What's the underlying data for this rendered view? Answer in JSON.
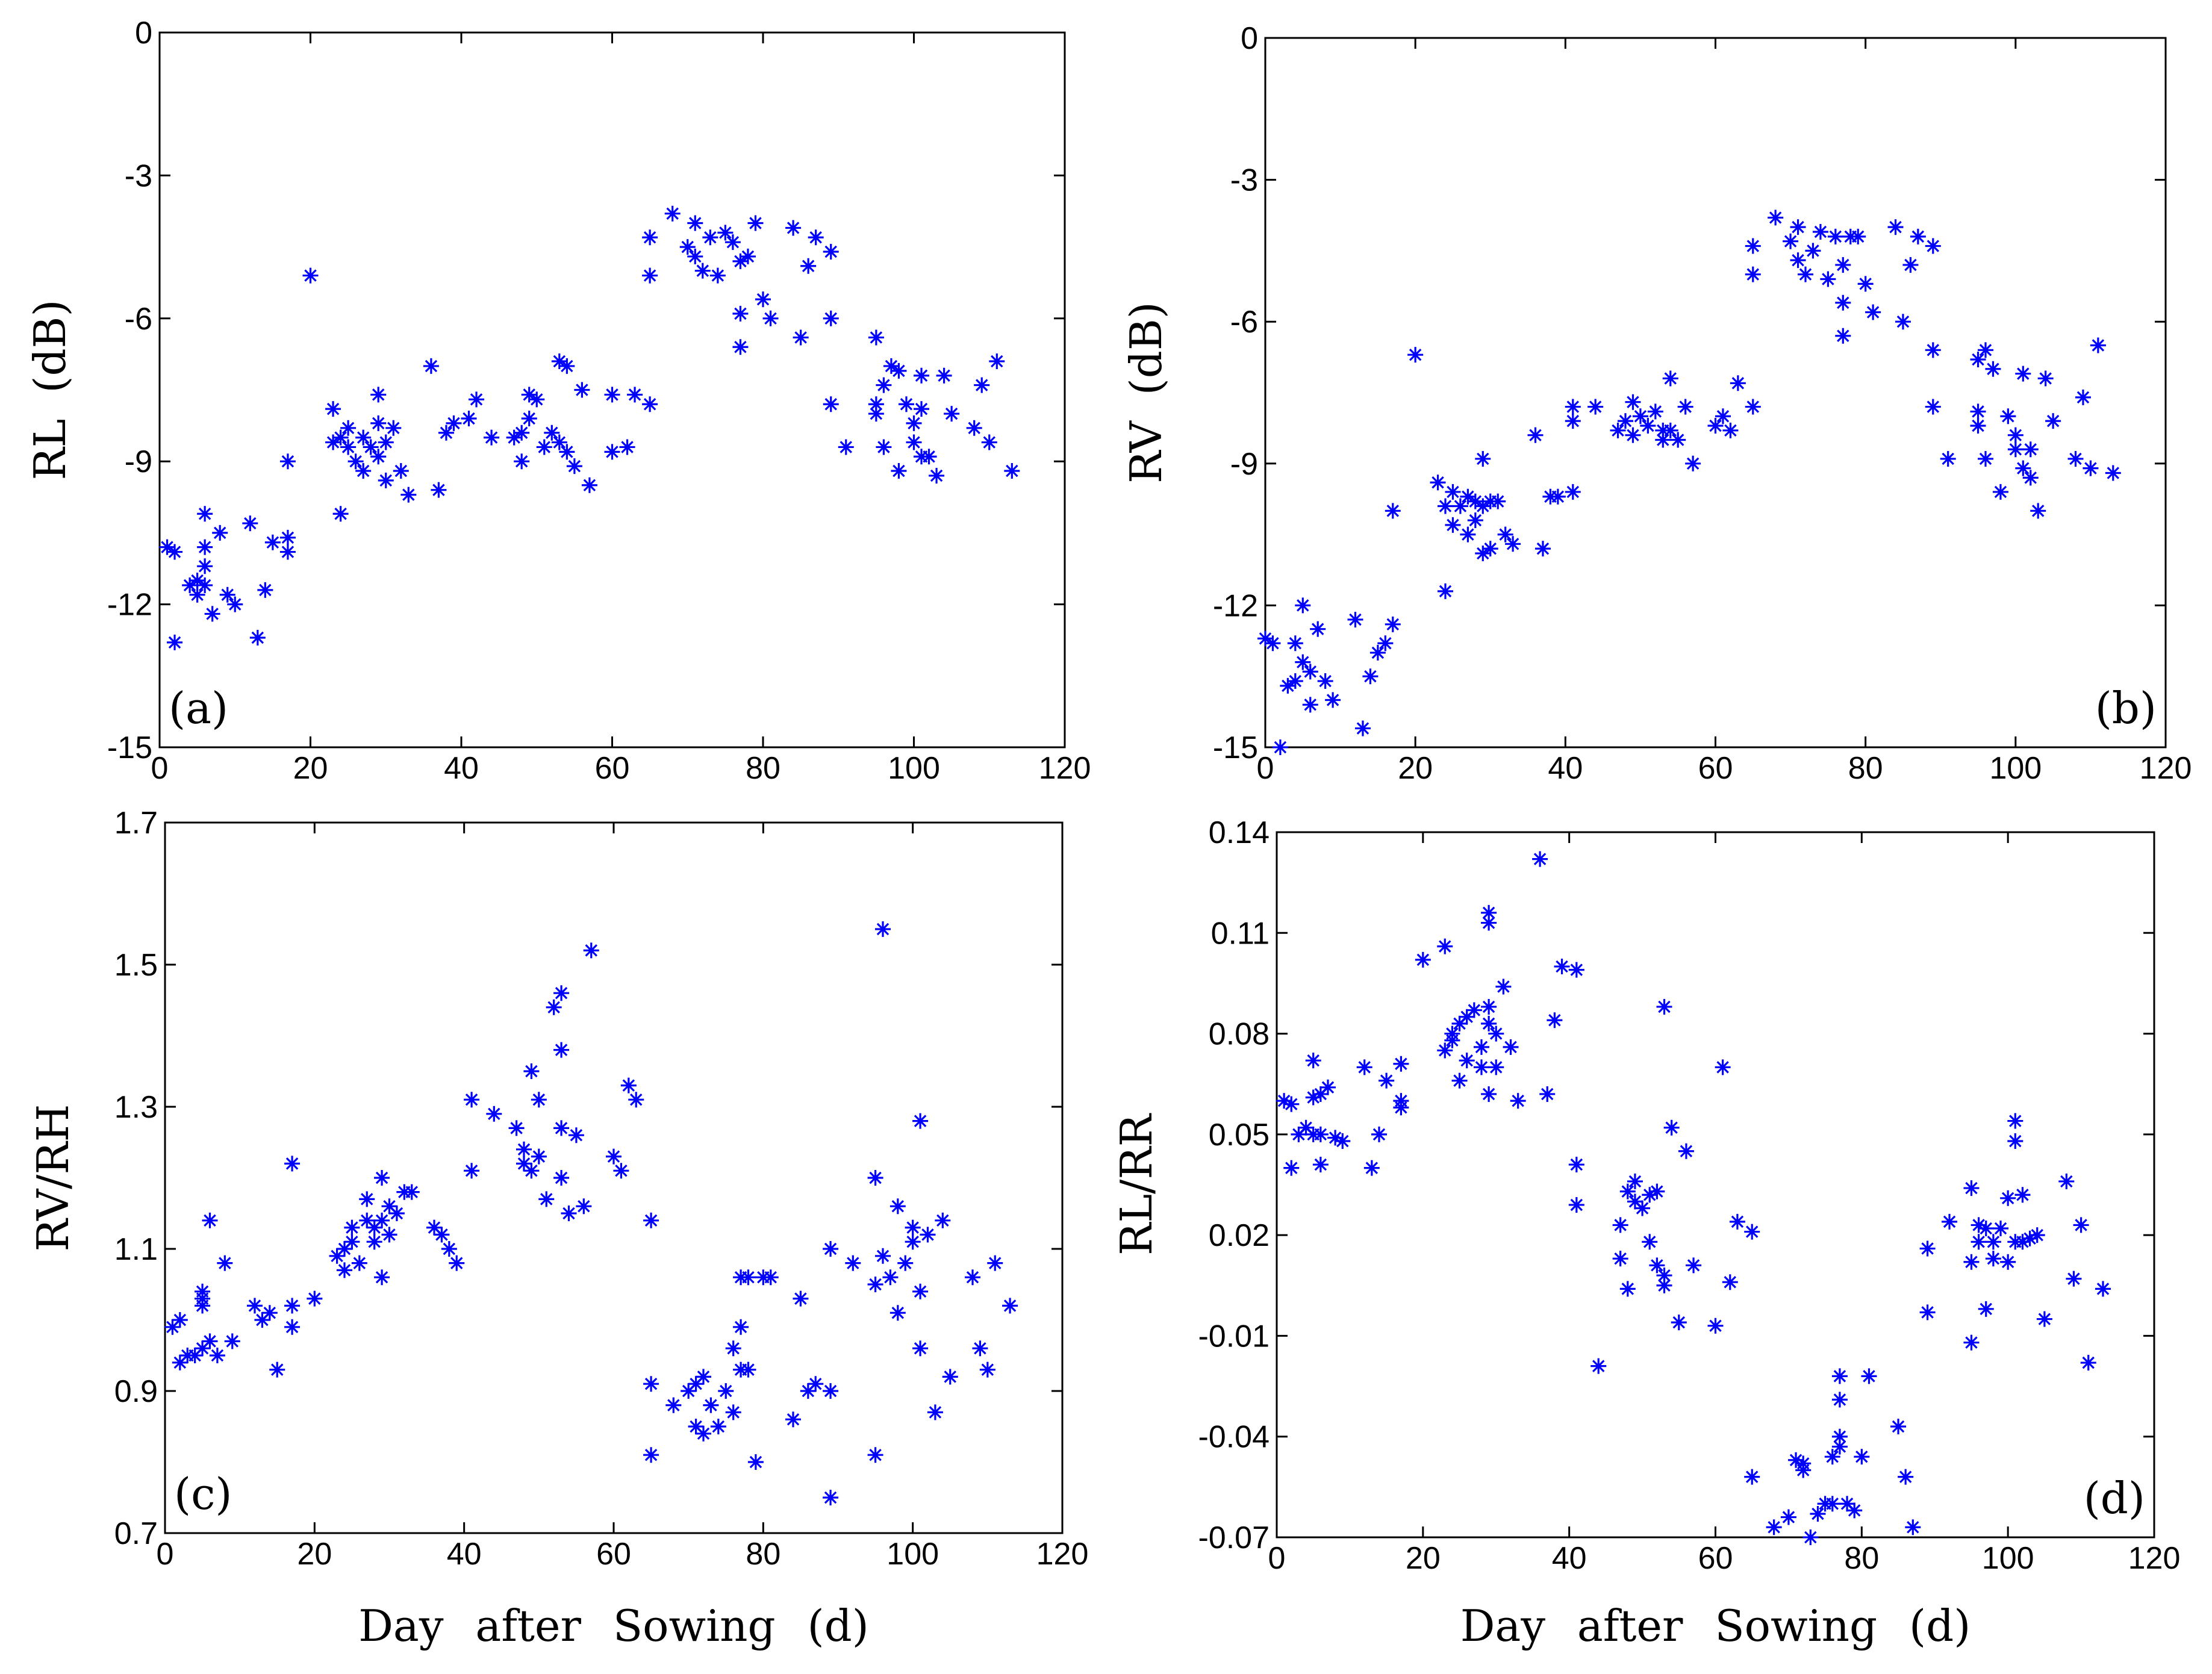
{
  "chart_data": [
    {
      "type": "scatter",
      "label": "(a)",
      "label_corner": "lower left",
      "ylabel": "RL (dB)",
      "color": "#0000ff",
      "xlim": [
        0,
        120
      ],
      "xticks": [
        0,
        20,
        40,
        60,
        80,
        100,
        120
      ],
      "ylim": [
        -15,
        0
      ],
      "yticks": [
        -15,
        -12,
        -9,
        -6,
        -3,
        0
      ],
      "x": [
        1,
        2,
        2,
        4,
        5,
        5,
        6,
        6,
        6,
        6,
        7,
        8,
        9,
        10,
        12,
        13,
        14,
        15,
        17,
        17,
        17,
        20,
        23,
        23,
        24,
        24,
        25,
        25,
        26,
        27,
        27,
        28,
        29,
        29,
        29,
        30,
        30,
        31,
        32,
        33,
        36,
        37,
        38,
        39,
        41,
        42,
        44,
        47,
        48,
        48,
        49,
        49,
        50,
        51,
        52,
        53,
        53,
        54,
        54,
        55,
        56,
        57,
        60,
        60,
        62,
        63,
        65,
        65,
        65,
        68,
        70,
        71,
        71,
        72,
        73,
        74,
        75,
        76,
        77,
        77,
        77,
        78,
        79,
        80,
        81,
        84,
        85,
        86,
        87,
        89,
        89,
        89,
        91,
        95,
        95,
        95,
        96,
        96,
        97,
        98,
        98,
        99,
        100,
        100,
        101,
        101,
        101,
        102,
        103,
        104,
        105,
        108,
        109,
        110,
        111,
        113
      ],
      "y": [
        -10.8,
        -12.8,
        -10.9,
        -11.6,
        -11.5,
        -11.8,
        -11.6,
        -10.8,
        -11.2,
        -10.1,
        -12.2,
        -10.5,
        -11.8,
        -12.0,
        -10.3,
        -12.7,
        -11.7,
        -10.7,
        -10.9,
        -10.6,
        -9.0,
        -5.1,
        -8.6,
        -7.9,
        -8.5,
        -10.1,
        -8.3,
        -8.7,
        -9.0,
        -8.5,
        -9.2,
        -8.7,
        -8.9,
        -7.6,
        -8.2,
        -9.4,
        -8.6,
        -8.3,
        -9.2,
        -9.7,
        -7.0,
        -9.6,
        -8.4,
        -8.2,
        -8.1,
        -7.7,
        -8.5,
        -8.5,
        -8.4,
        -9.0,
        -7.6,
        -8.1,
        -7.7,
        -8.7,
        -8.4,
        -8.6,
        -6.9,
        -8.8,
        -7.0,
        -9.1,
        -7.5,
        -9.5,
        -8.8,
        -7.6,
        -8.7,
        -7.6,
        -7.8,
        -4.3,
        -5.1,
        -3.8,
        -4.5,
        -4.0,
        -4.7,
        -5.0,
        -4.3,
        -5.1,
        -4.2,
        -4.4,
        -4.8,
        -5.9,
        -6.6,
        -4.7,
        -4.0,
        -5.6,
        -6.0,
        -4.1,
        -6.4,
        -4.9,
        -4.3,
        -4.6,
        -6.0,
        -7.8,
        -8.7,
        -6.4,
        -7.8,
        -8.0,
        -7.4,
        -8.7,
        -7.0,
        -7.1,
        -9.2,
        -7.8,
        -8.2,
        -8.6,
        -7.2,
        -8.9,
        -7.9,
        -8.9,
        -9.3,
        -7.2,
        -8.0,
        -8.3,
        -7.4,
        -8.6,
        -6.9,
        -9.2
      ]
    },
    {
      "type": "scatter",
      "label": "(b)",
      "label_corner": "lower right",
      "ylabel": "RV (dB)",
      "color": "#0000ff",
      "xlim": [
        0,
        120
      ],
      "xticks": [
        0,
        20,
        40,
        60,
        80,
        100,
        120
      ],
      "ylim": [
        -15,
        0
      ],
      "yticks": [
        -15,
        -12,
        -9,
        -6,
        -3,
        0
      ],
      "x": [
        0,
        1,
        2,
        3,
        4,
        4,
        5,
        5,
        6,
        6,
        7,
        8,
        9,
        12,
        13,
        14,
        15,
        16,
        17,
        17,
        20,
        23,
        24,
        24,
        25,
        25,
        26,
        27,
        27,
        28,
        28,
        29,
        29,
        29,
        30,
        30,
        31,
        32,
        33,
        36,
        37,
        38,
        39,
        41,
        41,
        41,
        44,
        47,
        48,
        49,
        49,
        50,
        51,
        52,
        53,
        53,
        54,
        54,
        55,
        56,
        57,
        60,
        61,
        62,
        63,
        65,
        65,
        65,
        68,
        70,
        71,
        71,
        72,
        73,
        74,
        75,
        76,
        77,
        77,
        77,
        78,
        79,
        80,
        81,
        84,
        85,
        86,
        87,
        89,
        89,
        89,
        91,
        95,
        95,
        95,
        96,
        96,
        97,
        98,
        99,
        100,
        100,
        101,
        101,
        102,
        102,
        103,
        104,
        105,
        108,
        109,
        110,
        111,
        113
      ],
      "y": [
        -12.7,
        -12.8,
        -15.0,
        -13.7,
        -13.6,
        -12.8,
        -13.2,
        -12.0,
        -13.4,
        -14.1,
        -12.5,
        -13.6,
        -14.0,
        -12.3,
        -14.6,
        -13.5,
        -13.0,
        -12.8,
        -12.4,
        -10.0,
        -6.7,
        -9.4,
        -9.9,
        -11.7,
        -9.6,
        -10.3,
        -9.9,
        -10.5,
        -9.7,
        -9.8,
        -10.2,
        -8.9,
        -9.9,
        -10.9,
        -10.8,
        -9.8,
        -9.8,
        -10.5,
        -10.7,
        -8.4,
        -10.8,
        -9.7,
        -9.7,
        -9.6,
        -7.8,
        -8.1,
        -7.8,
        -8.3,
        -8.1,
        -7.7,
        -8.4,
        -8.0,
        -8.2,
        -7.9,
        -8.3,
        -8.5,
        -7.2,
        -8.3,
        -8.5,
        -7.8,
        -9.0,
        -8.2,
        -8.0,
        -8.3,
        -7.3,
        -7.8,
        -4.4,
        -5.0,
        -3.8,
        -4.3,
        -4.0,
        -4.7,
        -5.0,
        -4.5,
        -4.1,
        -5.1,
        -4.2,
        -4.8,
        -5.6,
        -6.3,
        -4.2,
        -4.2,
        -5.2,
        -5.8,
        -4.0,
        -6.0,
        -4.8,
        -4.2,
        -4.4,
        -6.6,
        -7.8,
        -8.9,
        -6.8,
        -7.9,
        -8.2,
        -6.6,
        -8.9,
        -7.0,
        -9.6,
        -8.0,
        -8.4,
        -8.7,
        -7.1,
        -9.1,
        -8.7,
        -9.3,
        -10.0,
        -7.2,
        -8.1,
        -8.9,
        -7.6,
        -9.1,
        -6.5,
        -9.2
      ]
    },
    {
      "type": "scatter",
      "label": "(c)",
      "label_corner": "lower left",
      "ylabel": "RV/RH",
      "xlabel": "Day after Sowing (d)",
      "color": "#0000ff",
      "xlim": [
        0,
        120
      ],
      "xticks": [
        0,
        20,
        40,
        60,
        80,
        100,
        120
      ],
      "ylim": [
        0.7,
        1.7
      ],
      "yticks": [
        0.7,
        0.9,
        1.1,
        1.3,
        1.5,
        1.7
      ],
      "x": [
        1,
        2,
        2,
        3,
        4,
        5,
        5,
        5,
        5,
        6,
        6,
        7,
        8,
        9,
        12,
        13,
        14,
        15,
        17,
        17,
        17,
        20,
        23,
        24,
        24,
        25,
        25,
        26,
        27,
        27,
        28,
        28,
        29,
        29,
        29,
        30,
        30,
        31,
        32,
        33,
        36,
        37,
        38,
        39,
        41,
        41,
        44,
        47,
        48,
        48,
        49,
        49,
        50,
        50,
        51,
        52,
        53,
        53,
        53,
        53,
        54,
        55,
        56,
        57,
        60,
        61,
        62,
        63,
        65,
        65,
        65,
        68,
        70,
        71,
        71,
        72,
        72,
        73,
        74,
        75,
        76,
        76,
        77,
        77,
        77,
        78,
        78,
        79,
        80,
        81,
        84,
        85,
        86,
        87,
        89,
        89,
        89,
        92,
        95,
        95,
        95,
        96,
        96,
        97,
        98,
        98,
        99,
        100,
        100,
        101,
        101,
        101,
        102,
        103,
        104,
        105,
        108,
        109,
        110,
        111,
        113
      ],
      "y": [
        0.99,
        1.0,
        0.94,
        0.95,
        0.95,
        0.96,
        1.02,
        1.03,
        1.04,
        1.14,
        0.97,
        0.95,
        1.08,
        0.97,
        1.02,
        1.0,
        1.01,
        0.93,
        1.02,
        0.99,
        1.22,
        1.03,
        1.09,
        1.1,
        1.07,
        1.13,
        1.11,
        1.08,
        1.14,
        1.17,
        1.11,
        1.13,
        1.2,
        1.14,
        1.06,
        1.16,
        1.12,
        1.15,
        1.18,
        1.18,
        1.13,
        1.12,
        1.1,
        1.08,
        1.31,
        1.21,
        1.29,
        1.27,
        1.24,
        1.22,
        1.35,
        1.21,
        1.23,
        1.31,
        1.17,
        1.44,
        1.46,
        1.38,
        1.27,
        1.2,
        1.15,
        1.26,
        1.16,
        1.52,
        1.23,
        1.21,
        1.33,
        1.31,
        1.14,
        0.91,
        0.81,
        0.88,
        0.9,
        0.91,
        0.85,
        0.92,
        0.84,
        0.88,
        0.85,
        0.9,
        0.87,
        0.96,
        0.93,
        0.99,
        1.06,
        1.06,
        0.93,
        0.8,
        1.06,
        1.06,
        0.86,
        1.03,
        0.9,
        0.91,
        0.75,
        1.1,
        0.9,
        1.08,
        1.2,
        0.81,
        1.05,
        1.55,
        1.09,
        1.06,
        1.01,
        1.16,
        1.08,
        1.13,
        1.11,
        1.28,
        1.04,
        0.96,
        1.12,
        0.87,
        1.14,
        0.92,
        1.06,
        0.96,
        0.93,
        1.08,
        1.02
      ]
    },
    {
      "type": "scatter",
      "label": "(d)",
      "label_corner": "lower right",
      "ylabel": "RL/RR",
      "xlabel": "Day after Sowing (d)",
      "color": "#0000ff",
      "xlim": [
        0,
        120
      ],
      "xticks": [
        0,
        20,
        40,
        60,
        80,
        100,
        120
      ],
      "ylim": [
        -0.07,
        0.14
      ],
      "yticks": [
        -0.07,
        -0.04,
        -0.01,
        0.02,
        0.05,
        0.08,
        0.11,
        0.14
      ],
      "x": [
        1,
        2,
        2,
        3,
        4,
        5,
        5,
        5,
        6,
        6,
        6,
        7,
        8,
        9,
        12,
        13,
        14,
        15,
        17,
        17,
        17,
        20,
        23,
        23,
        24,
        24,
        25,
        25,
        26,
        26,
        27,
        28,
        28,
        29,
        29,
        29,
        29,
        29,
        30,
        30,
        31,
        32,
        33,
        36,
        37,
        38,
        39,
        41,
        41,
        41,
        44,
        47,
        47,
        48,
        48,
        49,
        49,
        50,
        51,
        51,
        52,
        52,
        53,
        53,
        53,
        54,
        55,
        56,
        57,
        60,
        61,
        62,
        63,
        65,
        65,
        68,
        70,
        71,
        72,
        72,
        73,
        74,
        75,
        76,
        76,
        77,
        77,
        77,
        77,
        78,
        79,
        80,
        81,
        85,
        86,
        87,
        89,
        89,
        92,
        95,
        95,
        95,
        96,
        96,
        97,
        97,
        98,
        98,
        99,
        100,
        100,
        101,
        101,
        101,
        102,
        102,
        103,
        104,
        105,
        108,
        109,
        110,
        111,
        113
      ],
      "y": [
        0.06,
        0.059,
        0.04,
        0.05,
        0.052,
        0.05,
        0.061,
        0.072,
        0.041,
        0.05,
        0.062,
        0.064,
        0.049,
        0.048,
        0.07,
        0.04,
        0.05,
        0.066,
        0.071,
        0.058,
        0.06,
        0.102,
        0.106,
        0.075,
        0.08,
        0.078,
        0.066,
        0.083,
        0.085,
        0.072,
        0.087,
        0.07,
        0.076,
        0.088,
        0.083,
        0.062,
        0.113,
        0.116,
        0.07,
        0.08,
        0.094,
        0.076,
        0.06,
        0.132,
        0.062,
        0.084,
        0.1,
        0.099,
        0.041,
        0.029,
        -0.019,
        0.013,
        0.023,
        0.033,
        0.004,
        0.036,
        0.03,
        0.028,
        0.032,
        0.018,
        0.011,
        0.033,
        0.088,
        0.008,
        0.005,
        0.052,
        -0.006,
        0.045,
        0.011,
        -0.007,
        0.07,
        0.006,
        0.024,
        0.021,
        -0.052,
        -0.067,
        -0.064,
        -0.047,
        -0.05,
        -0.048,
        -0.07,
        -0.063,
        -0.06,
        -0.046,
        -0.06,
        -0.04,
        -0.043,
        -0.029,
        -0.022,
        -0.06,
        -0.062,
        -0.046,
        -0.022,
        -0.037,
        -0.052,
        -0.067,
        0.016,
        -0.003,
        0.024,
        0.034,
        0.012,
        -0.012,
        0.023,
        0.018,
        0.022,
        -0.002,
        0.018,
        0.013,
        0.022,
        0.031,
        0.012,
        0.054,
        0.048,
        0.018,
        0.018,
        0.032,
        0.019,
        0.02,
        -0.005,
        0.036,
        0.007,
        0.023,
        -0.018,
        0.004
      ]
    }
  ]
}
